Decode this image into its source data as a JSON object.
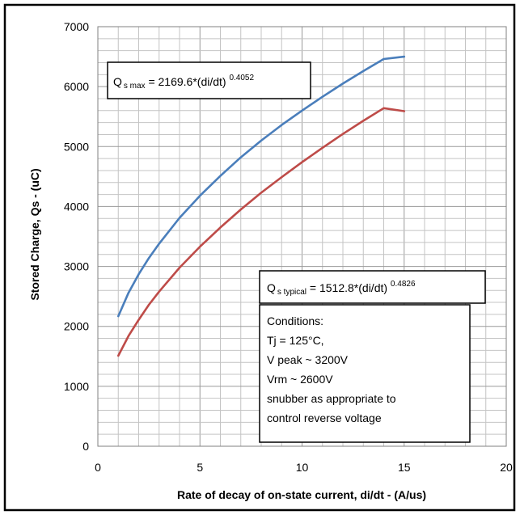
{
  "chart_data": {
    "type": "line",
    "xlabel": "Rate of decay of on-state current, di/dt - (A/us)",
    "ylabel": "Stored Charge, Qs - (uC)",
    "xlim": [
      0,
      20
    ],
    "ylim": [
      0,
      7000
    ],
    "x_ticks": [
      "0",
      "5",
      "10",
      "15",
      "20"
    ],
    "y_ticks": [
      "0",
      "1000",
      "2000",
      "3000",
      "4000",
      "5000",
      "6000",
      "7000"
    ],
    "grid": true,
    "series": [
      {
        "id": "qs-max",
        "color": "#4a7ebb",
        "x": [
          1,
          1.5,
          2,
          2.5,
          3,
          4,
          5,
          6,
          7,
          8,
          9,
          10,
          11,
          12,
          13,
          14,
          15
        ],
        "y": [
          2170,
          2560,
          2870,
          3140,
          3380,
          3810,
          4180,
          4510,
          4820,
          5100,
          5360,
          5600,
          5830,
          6050,
          6260,
          6460,
          6500
        ]
      },
      {
        "id": "qs-typical",
        "color": "#be4b48",
        "x": [
          1,
          1.5,
          2,
          2.5,
          3,
          4,
          5,
          6,
          7,
          8,
          9,
          10,
          11,
          12,
          13,
          14,
          15
        ],
        "y": [
          1510,
          1840,
          2110,
          2360,
          2580,
          2980,
          3330,
          3650,
          3950,
          4230,
          4490,
          4740,
          4980,
          5210,
          5430,
          5640,
          5590
        ]
      }
    ],
    "annotations": {
      "qs_max": {
        "lead": "Q",
        "sub": "s max",
        "body": " = 2169.6*(di/dt) ",
        "sup": "0.4052"
      },
      "qs_typical": {
        "lead": "Q",
        "sub": "s typical",
        "body": " = 1512.8*(di/dt) ",
        "sup": "0.4826"
      },
      "conditions": [
        "Conditions:",
        "Tj = 125°C,",
        "V peak ~ 3200V",
        "Vrm ~ 2600V",
        "snubber as appropriate to",
        "control reverse voltage"
      ]
    }
  }
}
